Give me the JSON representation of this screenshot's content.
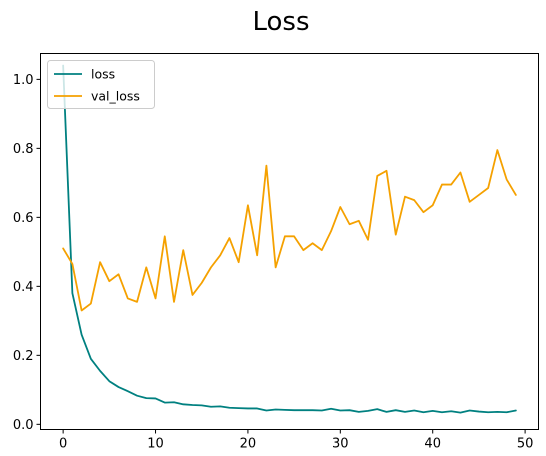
{
  "chart_data": {
    "type": "line",
    "title": "Loss",
    "xlabel": "",
    "ylabel": "",
    "xlim": [
      -2.45,
      51.45
    ],
    "ylim": [
      -0.015,
      1.075
    ],
    "xticks": [
      0,
      10,
      20,
      30,
      40,
      50
    ],
    "yticks": [
      0.0,
      0.2,
      0.4,
      0.6,
      0.8,
      1.0
    ],
    "xtick_labels": [
      "0",
      "10",
      "20",
      "30",
      "40",
      "50"
    ],
    "ytick_labels": [
      "0.0",
      "0.2",
      "0.4",
      "0.6",
      "0.8",
      "1.0"
    ],
    "grid": false,
    "legend_position": "top-left",
    "x": [
      0,
      1,
      2,
      3,
      4,
      5,
      6,
      7,
      8,
      9,
      10,
      11,
      12,
      13,
      14,
      15,
      16,
      17,
      18,
      19,
      20,
      21,
      22,
      23,
      24,
      25,
      26,
      27,
      28,
      29,
      30,
      31,
      32,
      33,
      34,
      35,
      36,
      37,
      38,
      39,
      40,
      41,
      42,
      43,
      44,
      45,
      46,
      47,
      48,
      49
    ],
    "series": [
      {
        "name": "loss",
        "color": "#008080",
        "values": [
          1.04,
          0.38,
          0.26,
          0.19,
          0.155,
          0.125,
          0.108,
          0.096,
          0.083,
          0.076,
          0.075,
          0.063,
          0.064,
          0.058,
          0.056,
          0.055,
          0.051,
          0.052,
          0.048,
          0.047,
          0.046,
          0.046,
          0.04,
          0.043,
          0.042,
          0.041,
          0.041,
          0.041,
          0.04,
          0.045,
          0.04,
          0.041,
          0.036,
          0.039,
          0.044,
          0.036,
          0.041,
          0.036,
          0.04,
          0.035,
          0.039,
          0.035,
          0.038,
          0.034,
          0.04,
          0.037,
          0.035,
          0.036,
          0.035,
          0.04
        ]
      },
      {
        "name": "val_loss",
        "color": "#f5a100",
        "values": [
          0.51,
          0.465,
          0.33,
          0.35,
          0.47,
          0.415,
          0.435,
          0.365,
          0.355,
          0.455,
          0.365,
          0.545,
          0.355,
          0.505,
          0.375,
          0.41,
          0.455,
          0.49,
          0.54,
          0.47,
          0.635,
          0.49,
          0.75,
          0.455,
          0.545,
          0.545,
          0.505,
          0.525,
          0.505,
          0.56,
          0.63,
          0.58,
          0.59,
          0.535,
          0.72,
          0.735,
          0.55,
          0.66,
          0.65,
          0.615,
          0.635,
          0.695,
          0.695,
          0.73,
          0.645,
          0.665,
          0.685,
          0.795,
          0.71,
          0.665
        ]
      }
    ]
  }
}
